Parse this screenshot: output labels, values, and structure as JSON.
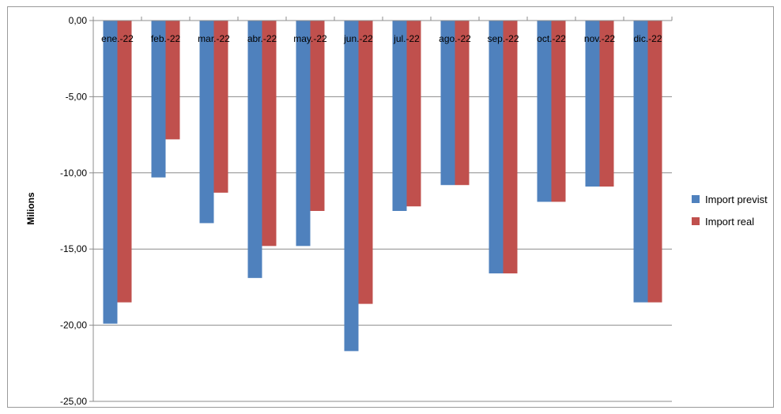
{
  "chart_data": {
    "type": "bar",
    "title": "",
    "xlabel": "",
    "ylabel": "Milions",
    "ylim": [
      -25,
      0
    ],
    "ytick_step": 5,
    "yticks": [
      "0,00",
      "-5,00",
      "-10,00",
      "-15,00",
      "-20,00",
      "-25,00"
    ],
    "grid": true,
    "legend_position": "right",
    "categories": [
      "ene.-22",
      "feb.-22",
      "mar.-22",
      "abr.-22",
      "may.-22",
      "jun.-22",
      "jul.-22",
      "ago.-22",
      "sep.-22",
      "oct.-22",
      "nov.-22",
      "dic.-22"
    ],
    "series": [
      {
        "name": "Import previst",
        "color": "#4F81BD",
        "values": [
          -19.9,
          -10.3,
          -13.3,
          -16.9,
          -14.8,
          -21.7,
          -12.5,
          -10.8,
          -16.6,
          -11.9,
          -10.9,
          -18.5
        ]
      },
      {
        "name": "Import real",
        "color": "#C0504D",
        "values": [
          -18.5,
          -7.8,
          -11.3,
          -14.8,
          -12.5,
          -18.6,
          -12.2,
          -10.8,
          -16.6,
          -11.9,
          -10.9,
          -18.5
        ]
      }
    ]
  }
}
